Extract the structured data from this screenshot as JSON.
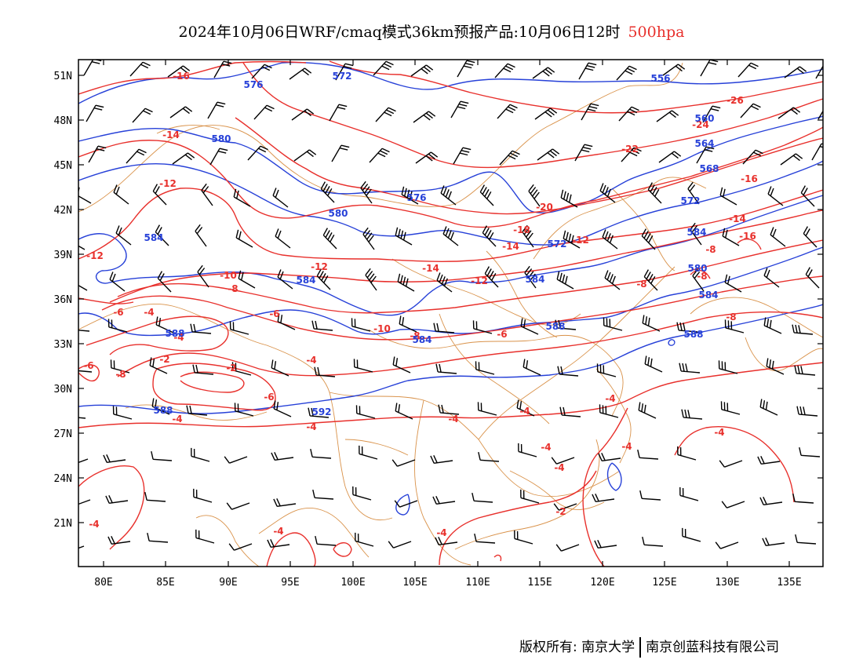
{
  "header": {
    "title": "2024年10月06日WRF/cmaq模式36km预报产品:10月06日12时",
    "level": "500hpa"
  },
  "colors": {
    "temperature": "#e8302c",
    "height": "#2741d8",
    "border": "#d9924a",
    "wind": "#000000"
  },
  "axes": {
    "lat_ticks": [
      "51N",
      "48N",
      "45N",
      "42N",
      "39N",
      "36N",
      "33N",
      "30N",
      "27N",
      "24N",
      "21N"
    ],
    "lon_ticks": [
      "80E",
      "85E",
      "90E",
      "95E",
      "100E",
      "105E",
      "110E",
      "115E",
      "120E",
      "125E",
      "130E",
      "135E"
    ]
  },
  "temperature_labels": [
    "-16",
    "-26",
    "-14",
    "-24",
    "-22",
    "-12",
    "-16",
    "-20",
    "-18",
    "-14",
    "-12",
    "-16",
    "-14",
    "-12",
    "-8",
    "-10",
    "-12",
    "-14",
    "-12",
    "-8",
    "-8",
    "-6",
    "-4",
    "-8",
    "-6",
    "-10",
    "-8",
    "-6",
    "-8",
    "-4",
    "-6",
    "-8",
    "-2",
    "-6",
    "-2",
    "-4",
    "-4",
    "-4",
    "-4",
    "-4",
    "-4",
    "-4",
    "-4",
    "-4",
    "-4",
    "-4",
    "-2",
    "-4",
    "-4"
  ],
  "height_labels": [
    "576",
    "572",
    "556",
    "560",
    "580",
    "564",
    "568",
    "576",
    "580",
    "572",
    "584",
    "572",
    "584",
    "580",
    "584",
    "584",
    "588",
    "584",
    "584",
    "588",
    "588",
    "588",
    "592"
  ],
  "footer": {
    "copyright_left": "版权所有: 南京大学",
    "copyright_right": "南京创蓝科技有限公司"
  }
}
